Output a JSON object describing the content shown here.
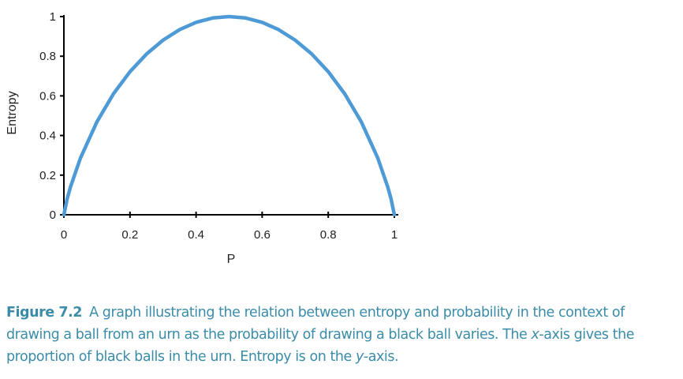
{
  "chart_data": {
    "type": "line",
    "xlabel": "P",
    "ylabel": "Entropy",
    "xlim": [
      0,
      1
    ],
    "ylim": [
      0,
      1
    ],
    "x_ticks": [
      "0",
      "0.2",
      "0.4",
      "0.6",
      "0.8",
      "1"
    ],
    "y_ticks": [
      "0",
      "0.2",
      "0.4",
      "0.6",
      "0.8",
      "1"
    ],
    "grid": false,
    "legend": "none",
    "series": [
      {
        "color": "#4d9ad6",
        "x": [
          0,
          0.01,
          0.02,
          0.05,
          0.1,
          0.15,
          0.2,
          0.25,
          0.3,
          0.35,
          0.4,
          0.45,
          0.5,
          0.55,
          0.6,
          0.65,
          0.7,
          0.75,
          0.8,
          0.85,
          0.9,
          0.95,
          0.98,
          0.99,
          1
        ],
        "y": [
          0,
          0.081,
          0.141,
          0.286,
          0.469,
          0.61,
          0.722,
          0.811,
          0.881,
          0.934,
          0.971,
          0.993,
          1,
          0.993,
          0.971,
          0.934,
          0.881,
          0.811,
          0.722,
          0.61,
          0.469,
          0.286,
          0.141,
          0.081,
          0
        ]
      }
    ]
  },
  "caption": {
    "label": "Figure 7.2",
    "text_1": "A graph illustrating the relation between entropy and probability in the context of drawing a ball from an urn as the probability of drawing a black ball varies. The ",
    "x_var": "x",
    "text_2": "-axis gives the proportion of black balls in the urn. Entropy is on the ",
    "y_var": "y",
    "text_3": "-axis."
  }
}
